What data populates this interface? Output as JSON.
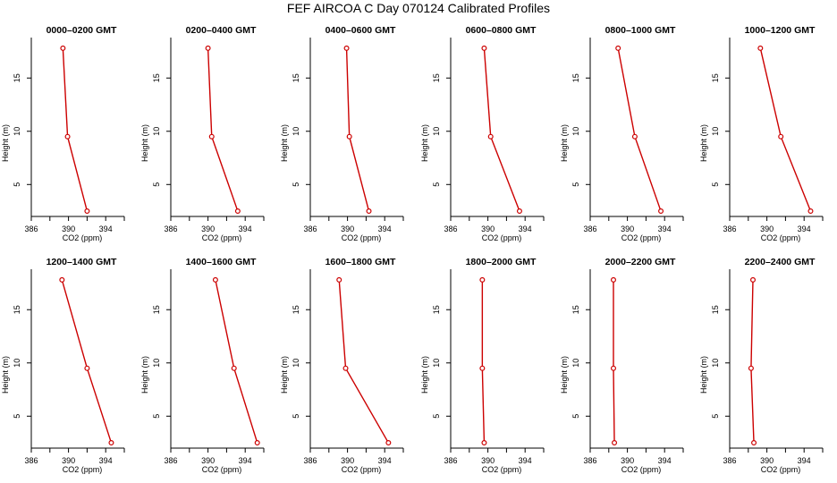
{
  "title": "FEF AIRCOA C  Day 070124  Calibrated Profiles",
  "chart_data": [
    {
      "type": "line",
      "title": "0000–0200 GMT",
      "xlabel": "CO2 (ppm)",
      "ylabel": "Height (m)",
      "xlim": [
        386,
        396
      ],
      "ylim": [
        2,
        18.8
      ],
      "xticks": [
        386,
        390,
        394
      ],
      "yticks": [
        5,
        10,
        15
      ],
      "color": "#cc0000",
      "marker": "circle",
      "points": [
        {
          "x": 392.0,
          "y": 2.5
        },
        {
          "x": 389.9,
          "y": 9.5
        },
        {
          "x": 389.4,
          "y": 17.8
        }
      ]
    },
    {
      "type": "line",
      "title": "0200–0400 GMT",
      "xlabel": "CO2 (ppm)",
      "ylabel": "Height (m)",
      "xlim": [
        386,
        396
      ],
      "ylim": [
        2,
        18.8
      ],
      "xticks": [
        386,
        390,
        394
      ],
      "yticks": [
        5,
        10,
        15
      ],
      "color": "#cc0000",
      "marker": "circle",
      "points": [
        {
          "x": 393.2,
          "y": 2.5
        },
        {
          "x": 390.4,
          "y": 9.5
        },
        {
          "x": 390.0,
          "y": 17.8
        }
      ]
    },
    {
      "type": "line",
      "title": "0400–0600 GMT",
      "xlabel": "CO2 (ppm)",
      "ylabel": "Height (m)",
      "xlim": [
        386,
        396
      ],
      "ylim": [
        2,
        18.8
      ],
      "xticks": [
        386,
        390,
        394
      ],
      "yticks": [
        5,
        10,
        15
      ],
      "color": "#cc0000",
      "marker": "circle",
      "points": [
        {
          "x": 392.3,
          "y": 2.5
        },
        {
          "x": 390.2,
          "y": 9.5
        },
        {
          "x": 389.9,
          "y": 17.8
        }
      ]
    },
    {
      "type": "line",
      "title": "0600–0800 GMT",
      "xlabel": "CO2 (ppm)",
      "ylabel": "Height (m)",
      "xlim": [
        386,
        396
      ],
      "ylim": [
        2,
        18.8
      ],
      "xticks": [
        386,
        390,
        394
      ],
      "yticks": [
        5,
        10,
        15
      ],
      "color": "#cc0000",
      "marker": "circle",
      "points": [
        {
          "x": 393.4,
          "y": 2.5
        },
        {
          "x": 390.3,
          "y": 9.5
        },
        {
          "x": 389.6,
          "y": 17.8
        }
      ]
    },
    {
      "type": "line",
      "title": "0800–1000 GMT",
      "xlabel": "CO2 (ppm)",
      "ylabel": "Height (m)",
      "xlim": [
        386,
        396
      ],
      "ylim": [
        2,
        18.8
      ],
      "xticks": [
        386,
        390,
        394
      ],
      "yticks": [
        5,
        10,
        15
      ],
      "color": "#cc0000",
      "marker": "circle",
      "points": [
        {
          "x": 393.6,
          "y": 2.5
        },
        {
          "x": 390.8,
          "y": 9.5
        },
        {
          "x": 389.0,
          "y": 17.8
        }
      ]
    },
    {
      "type": "line",
      "title": "1000–1200 GMT",
      "xlabel": "CO2 (ppm)",
      "ylabel": "Height (m)",
      "xlim": [
        386,
        396
      ],
      "ylim": [
        2,
        18.8
      ],
      "xticks": [
        386,
        390,
        394
      ],
      "yticks": [
        5,
        10,
        15
      ],
      "color": "#cc0000",
      "marker": "circle",
      "points": [
        {
          "x": 394.7,
          "y": 2.5
        },
        {
          "x": 391.5,
          "y": 9.5
        },
        {
          "x": 389.3,
          "y": 17.8
        }
      ]
    },
    {
      "type": "line",
      "title": "1200–1400 GMT",
      "xlabel": "CO2 (ppm)",
      "ylabel": "Height (m)",
      "xlim": [
        386,
        396
      ],
      "ylim": [
        2,
        18.8
      ],
      "xticks": [
        386,
        390,
        394
      ],
      "yticks": [
        5,
        10,
        15
      ],
      "color": "#cc0000",
      "marker": "circle",
      "points": [
        {
          "x": 394.6,
          "y": 2.5
        },
        {
          "x": 392.0,
          "y": 9.5
        },
        {
          "x": 389.3,
          "y": 17.8
        }
      ]
    },
    {
      "type": "line",
      "title": "1400–1600 GMT",
      "xlabel": "CO2 (ppm)",
      "ylabel": "Height (m)",
      "xlim": [
        386,
        396
      ],
      "ylim": [
        2,
        18.8
      ],
      "xticks": [
        386,
        390,
        394
      ],
      "yticks": [
        5,
        10,
        15
      ],
      "color": "#cc0000",
      "marker": "circle",
      "points": [
        {
          "x": 395.3,
          "y": 2.5
        },
        {
          "x": 392.8,
          "y": 9.5
        },
        {
          "x": 390.8,
          "y": 17.8
        }
      ]
    },
    {
      "type": "line",
      "title": "1600–1800 GMT",
      "xlabel": "CO2 (ppm)",
      "ylabel": "Height (m)",
      "xlim": [
        386,
        396
      ],
      "ylim": [
        2,
        18.8
      ],
      "xticks": [
        386,
        390,
        394
      ],
      "yticks": [
        5,
        10,
        15
      ],
      "color": "#cc0000",
      "marker": "circle",
      "points": [
        {
          "x": 394.4,
          "y": 2.5
        },
        {
          "x": 389.8,
          "y": 9.5
        },
        {
          "x": 389.1,
          "y": 17.8
        }
      ]
    },
    {
      "type": "line",
      "title": "1800–2000 GMT",
      "xlabel": "CO2 (ppm)",
      "ylabel": "Height (m)",
      "xlim": [
        386,
        396
      ],
      "ylim": [
        2,
        18.8
      ],
      "xticks": [
        386,
        390,
        394
      ],
      "yticks": [
        5,
        10,
        15
      ],
      "color": "#cc0000",
      "marker": "circle",
      "points": [
        {
          "x": 389.6,
          "y": 2.5
        },
        {
          "x": 389.4,
          "y": 9.5
        },
        {
          "x": 389.4,
          "y": 17.8
        }
      ]
    },
    {
      "type": "line",
      "title": "2000–2200 GMT",
      "xlabel": "CO2 (ppm)",
      "ylabel": "Height (m)",
      "xlim": [
        386,
        396
      ],
      "ylim": [
        2,
        18.8
      ],
      "xticks": [
        386,
        390,
        394
      ],
      "yticks": [
        5,
        10,
        15
      ],
      "color": "#cc0000",
      "marker": "circle",
      "points": [
        {
          "x": 388.6,
          "y": 2.5
        },
        {
          "x": 388.5,
          "y": 9.5
        },
        {
          "x": 388.5,
          "y": 17.8
        }
      ]
    },
    {
      "type": "line",
      "title": "2200–2400 GMT",
      "xlabel": "CO2 (ppm)",
      "ylabel": "Height (m)",
      "xlim": [
        386,
        396
      ],
      "ylim": [
        2,
        18.8
      ],
      "xticks": [
        386,
        390,
        394
      ],
      "yticks": [
        5,
        10,
        15
      ],
      "color": "#cc0000",
      "marker": "circle",
      "points": [
        {
          "x": 388.6,
          "y": 2.5
        },
        {
          "x": 388.3,
          "y": 9.5
        },
        {
          "x": 388.5,
          "y": 17.8
        }
      ]
    }
  ]
}
